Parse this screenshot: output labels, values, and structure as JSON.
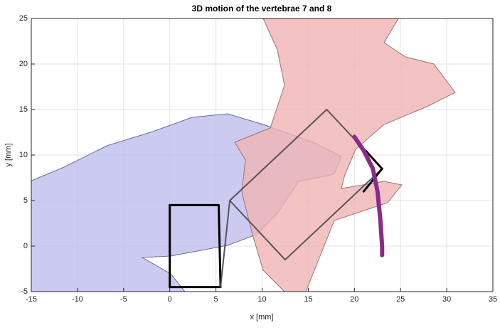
{
  "chart_data": {
    "type": "line",
    "title": "3D motion of the vertebrae 7 and 8",
    "x_label": "x [mm]",
    "y_label": "y [mm]",
    "xlim": [
      -15,
      35
    ],
    "xticks": [
      -15,
      -10,
      -5,
      0,
      5,
      10,
      15,
      20,
      25,
      30,
      35
    ],
    "ylim": [
      -5,
      25
    ],
    "yticks": [
      -5,
      0,
      5,
      10,
      15,
      20,
      25
    ],
    "grid": true,
    "series": [
      {
        "color": "#000000",
        "width": 3,
        "x": [
          0,
          5.3,
          5.5,
          0,
          0
        ],
        "values": [
          4.5,
          4.5,
          -4.5,
          -4.5,
          4.5
        ]
      },
      {
        "color": "#555555",
        "width": 2,
        "x": [
          5.5,
          6.5,
          17,
          23,
          12.5,
          6.5
        ],
        "values": [
          -4.5,
          5,
          15,
          8.5,
          -1.5,
          5
        ]
      },
      {
        "color": "#000000",
        "width": 3,
        "x": [
          21.2,
          23,
          21
        ],
        "values": [
          10.5,
          8.5,
          6
        ]
      },
      {
        "color": "#8a2b8a",
        "width": 6,
        "x": [
          20,
          21,
          22,
          22.5,
          22.8,
          23,
          23
        ],
        "values": [
          12,
          10.5,
          8.5,
          6,
          3,
          0,
          -1
        ]
      }
    ]
  }
}
